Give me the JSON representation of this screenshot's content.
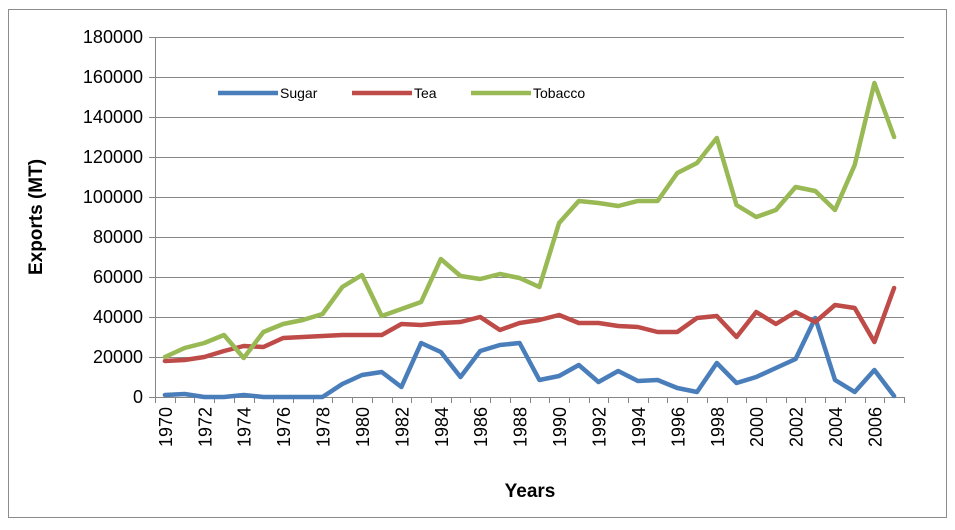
{
  "chart_data": {
    "type": "line",
    "title": "",
    "xlabel": "Years",
    "ylabel": "Exports (MT)",
    "ylim": [
      0,
      180000
    ],
    "yticks": [
      0,
      20000,
      40000,
      60000,
      80000,
      100000,
      120000,
      140000,
      160000,
      180000
    ],
    "x": [
      1970,
      1971,
      1972,
      1973,
      1974,
      1975,
      1976,
      1977,
      1978,
      1979,
      1980,
      1981,
      1982,
      1983,
      1984,
      1985,
      1986,
      1987,
      1988,
      1989,
      1990,
      1991,
      1992,
      1993,
      1994,
      1995,
      1996,
      1997,
      1998,
      1999,
      2000,
      2001,
      2002,
      2003,
      2004,
      2005,
      2006,
      2007
    ],
    "xticks": [
      1970,
      1972,
      1974,
      1976,
      1978,
      1980,
      1982,
      1984,
      1986,
      1988,
      1990,
      1992,
      1994,
      1996,
      1998,
      2000,
      2002,
      2004,
      2006
    ],
    "grid": "horizontal",
    "legend_position": "top-left",
    "series": [
      {
        "name": "Sugar",
        "color": "#4a7ebb",
        "values": [
          1000,
          1500,
          0,
          0,
          1000,
          0,
          0,
          0,
          0,
          6500,
          11000,
          12500,
          5000,
          27000,
          22500,
          10000,
          23000,
          26000,
          27000,
          8500,
          10500,
          16000,
          7500,
          13000,
          8000,
          8500,
          4500,
          2500,
          17000,
          7000,
          10000,
          14500,
          19000,
          39500,
          8500,
          2500,
          13500,
          500
        ]
      },
      {
        "name": "Tea",
        "color": "#be4b48",
        "values": [
          18000,
          18500,
          20000,
          23000,
          25500,
          25000,
          29500,
          30000,
          30500,
          31000,
          31000,
          31000,
          36500,
          36000,
          37000,
          37500,
          40000,
          33500,
          37000,
          38500,
          41000,
          37000,
          37000,
          35500,
          35000,
          32500,
          32500,
          39500,
          40500,
          30000,
          42500,
          36500,
          42500,
          37500,
          46000,
          44500,
          27500,
          54500
        ]
      },
      {
        "name": "Tobacco",
        "color": "#98b954",
        "values": [
          20000,
          24500,
          27000,
          31000,
          19500,
          32500,
          36500,
          38500,
          41500,
          55000,
          61000,
          40500,
          44000,
          47500,
          69000,
          60500,
          59000,
          61500,
          59500,
          55000,
          87000,
          98000,
          97000,
          95500,
          98000,
          98000,
          112000,
          117000,
          129500,
          96000,
          90000,
          93500,
          105000,
          103000,
          93500,
          116000,
          157000,
          130000
        ]
      }
    ]
  }
}
